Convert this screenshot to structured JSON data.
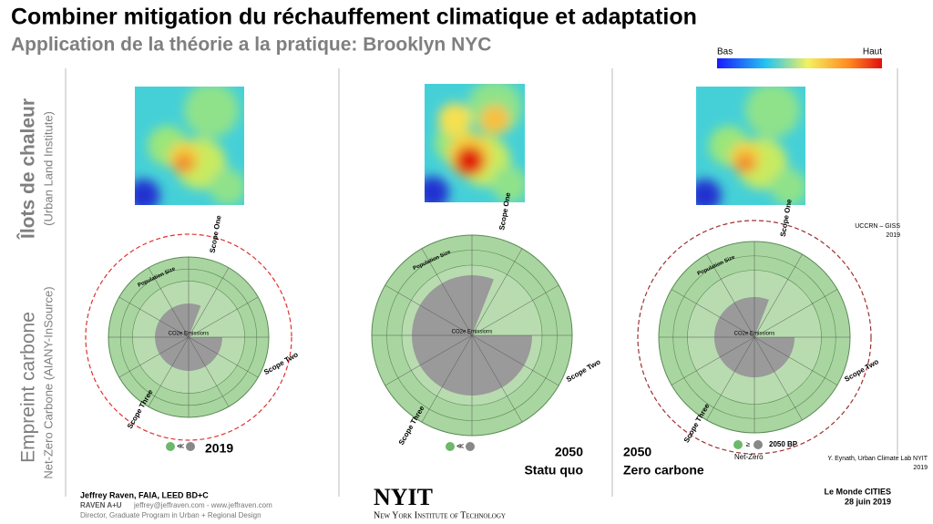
{
  "header": {
    "title": "Combiner mitigation du réchauffement climatique et adaptation",
    "subtitle": "Application de la théorie a la pratique: Brooklyn NYC"
  },
  "legend": {
    "low": "Bas",
    "high": "Haut"
  },
  "row_labels": {
    "heat": "Îlots de chaleur",
    "heat_source": "(Urban Land Institute)",
    "carbon": "Empreint carbone",
    "carbon_source": "Net-Zero Carbone (AIANY-InSource)"
  },
  "panels": [
    {
      "year": "2019",
      "comparison": "≪",
      "wheel": {
        "population": "Population Size",
        "scope_one": "Scope One",
        "scope_two": "Scope Two",
        "scope_three": "Scope Three",
        "center": "CO2e Emissions"
      }
    },
    {
      "year": "2050",
      "scenario": "Statu quo",
      "comparison": "≪",
      "wheel": {
        "population": "Population Size",
        "scope_one": "Scope One",
        "scope_two": "Scope Two",
        "scope_three": "Scope Three",
        "center": "CO2e Emissions"
      }
    },
    {
      "year": "2050",
      "scenario": "Zero carbone",
      "comparison": "≥",
      "target": "2050 BP",
      "target_label": "Net-Zero",
      "wheel": {
        "population": "Population Size",
        "scope_one": "Scope One",
        "scope_two": "Scope Two",
        "scope_three": "Scope Three",
        "center": "CO2e Emissions"
      }
    }
  ],
  "sources": {
    "uccrn": "UCCRN – GISS",
    "uccrn_year": "2019",
    "eynath": "Y. Eynath, Urban Climate Lab NYIT",
    "eynath_year": "2019",
    "lemonde": "Le Monde CITIES",
    "lemonde_date": "28 juin 2019"
  },
  "footer": {
    "name": "Jeffrey Raven, FAIA, LEED BD+C",
    "firm": "RAVEN A+U",
    "contact": "jeffrey@jeffraven.com - www.jeffraven.com",
    "role": "Director, Graduate Program in Urban + Regional Design",
    "logo": "NYIT",
    "institute": "New York Institute of Technology"
  }
}
